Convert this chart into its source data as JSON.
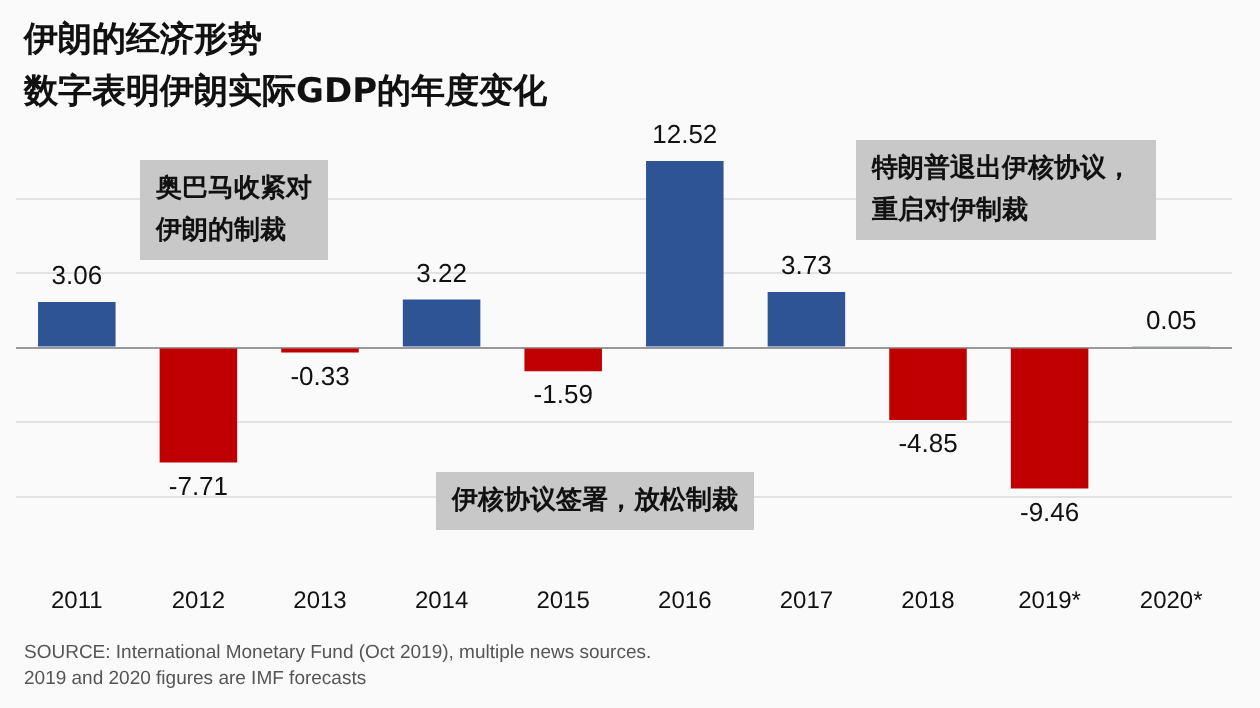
{
  "chart_data": {
    "type": "bar",
    "title": "伊朗的经济形势",
    "subtitle": "数字表明伊朗实际GDP的年度变化",
    "categories": [
      "2011",
      "2012",
      "2013",
      "2014",
      "2015",
      "2016",
      "2017",
      "2018",
      "2019*",
      "2020*"
    ],
    "values": [
      3.06,
      -7.71,
      -0.33,
      3.22,
      -1.59,
      12.52,
      3.73,
      -4.85,
      -9.46,
      0.05
    ],
    "colors": [
      "#2f5496",
      "#c00000",
      "#c00000",
      "#2f5496",
      "#c00000",
      "#2f5496",
      "#2f5496",
      "#c00000",
      "#c00000",
      "#2f5496"
    ],
    "data_labels": true,
    "yticks": [
      {
        "value": -10,
        "label": null
      },
      {
        "value": -5,
        "label": null
      },
      {
        "value": 0,
        "label": null
      },
      {
        "value": 5,
        "label": null
      },
      {
        "value": 10,
        "label": null
      }
    ],
    "tick_labels": "x",
    "grid": "y",
    "legend": false,
    "annotations": [
      "奥巴马收紧对伊朗的制裁",
      "伊核协议签署，放松制裁",
      "特朗普退出伊核协议，重启对伊制裁",
      "SOURCE: International Monetary Fund (Oct 2019), multiple news sources.\n2019 and 2020 figures are IMF forecasts"
    ]
  }
}
